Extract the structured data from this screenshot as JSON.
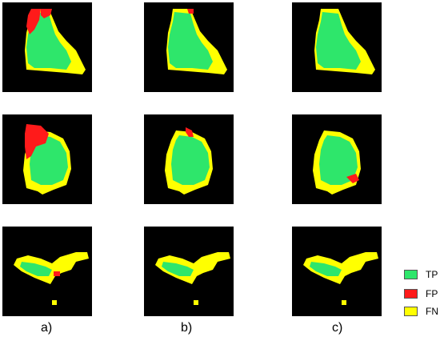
{
  "figure": {
    "columns": [
      {
        "label": "a)"
      },
      {
        "label": "b)"
      },
      {
        "label": "c)"
      }
    ],
    "legend": [
      {
        "label": "TP",
        "color": "#2ee66b"
      },
      {
        "label": "FP",
        "color": "#ff1a1a"
      },
      {
        "label": "FN",
        "color": "#ffff00"
      }
    ]
  }
}
